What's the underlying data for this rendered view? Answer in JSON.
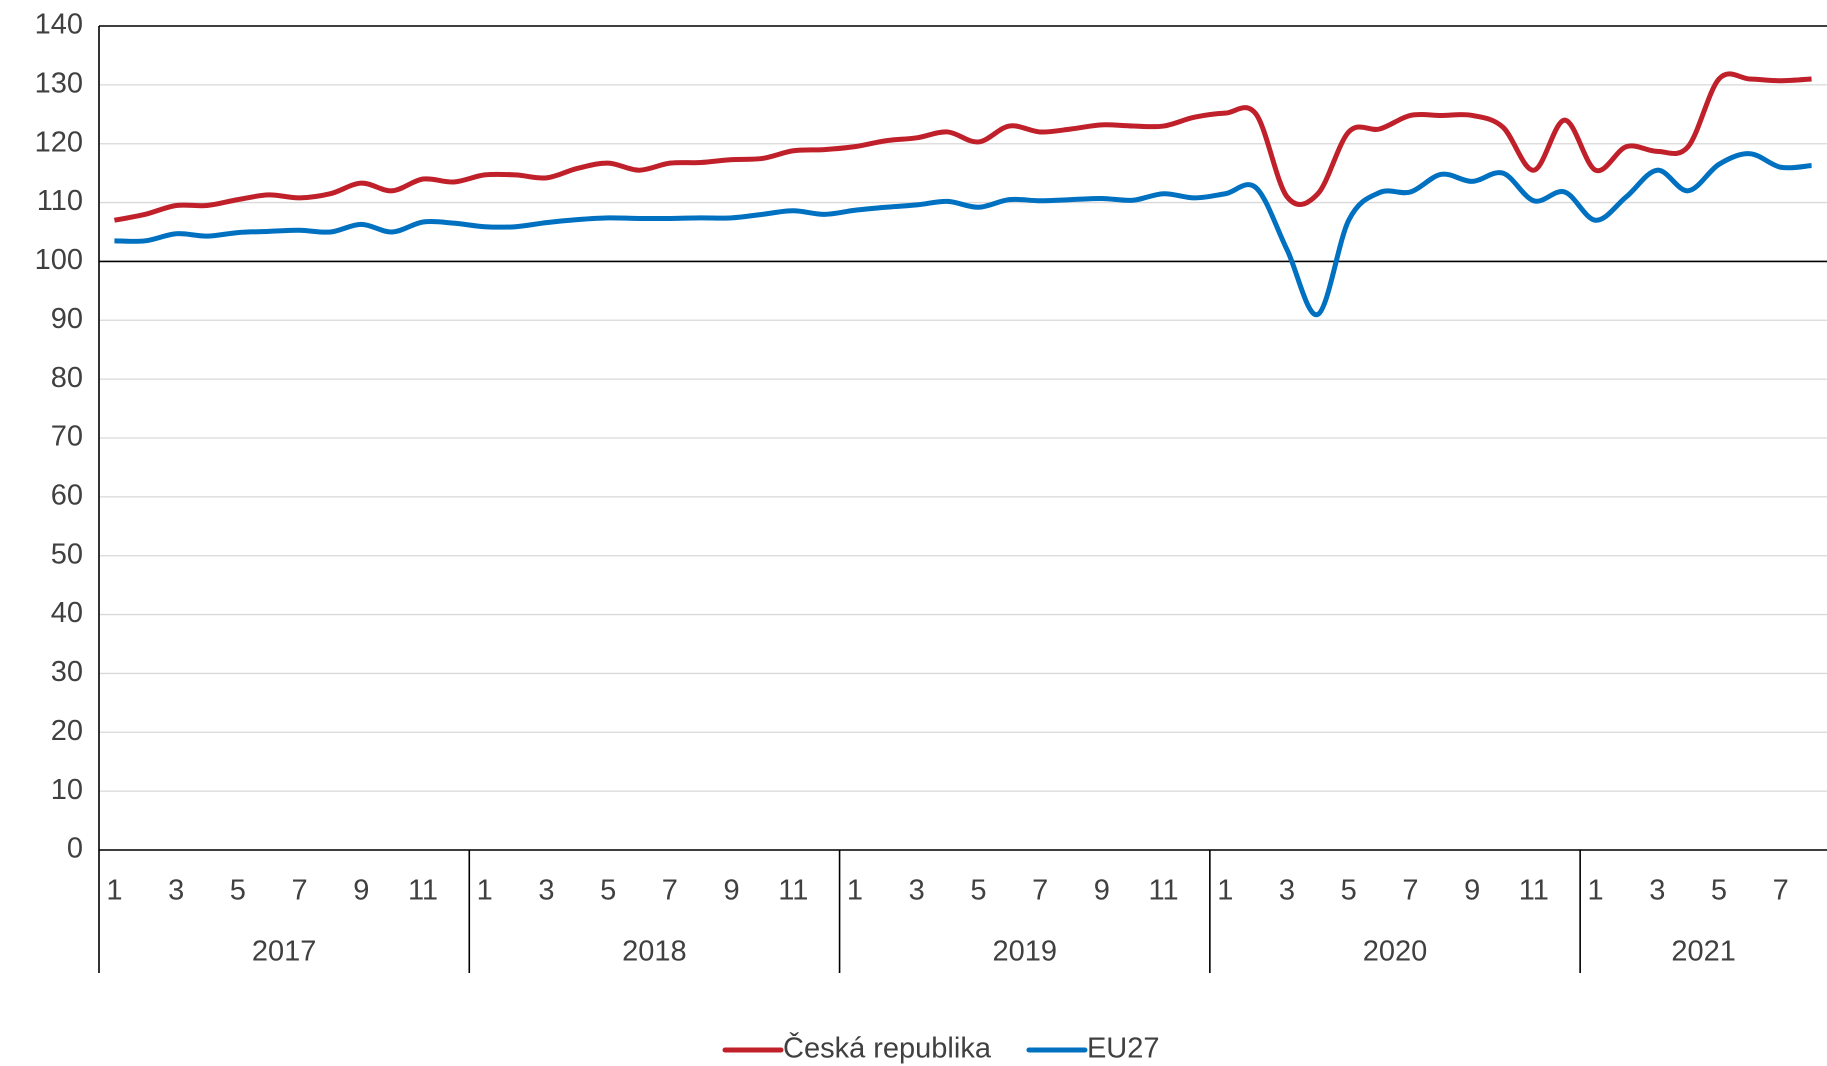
{
  "chart_data": {
    "type": "line",
    "categories": [
      "1",
      null,
      "3",
      null,
      "5",
      null,
      "7",
      null,
      "9",
      null,
      "11",
      null,
      "1",
      null,
      "3",
      null,
      "5",
      null,
      "7",
      null,
      "9",
      null,
      "11",
      null,
      "1",
      null,
      "3",
      null,
      "5",
      null,
      "7",
      null,
      "9",
      null,
      "11",
      null,
      "1",
      null,
      "3",
      null,
      "5",
      null,
      "7",
      null,
      "9",
      null,
      "11",
      null,
      "1",
      null,
      "3",
      null,
      "5",
      null,
      "7",
      null
    ],
    "years": [
      "2017",
      "2018",
      "2019",
      "2020",
      "2021"
    ],
    "series": [
      {
        "name": "Česká republika",
        "color": "#c0202a",
        "values": [
          107,
          108,
          109.5,
          109.5,
          110.5,
          111.3,
          110.8,
          111.5,
          113.3,
          112,
          114,
          113.5,
          114.7,
          114.7,
          114.2,
          115.8,
          116.7,
          115.5,
          116.7,
          116.8,
          117.3,
          117.5,
          118.8,
          119,
          119.5,
          120.5,
          121,
          122,
          120.3,
          123,
          122,
          122.5,
          123.2,
          123,
          123,
          124.5,
          125.2,
          125,
          111,
          111.5,
          122,
          122.5,
          124.8,
          124.8,
          124.8,
          122.8,
          115.5,
          124,
          115.5,
          119.5,
          118.7,
          119.5,
          131,
          131,
          130.7,
          131
        ]
      },
      {
        "name": "EU27",
        "color": "#0070c0",
        "values": [
          103.5,
          103.5,
          104.7,
          104.3,
          104.9,
          105.1,
          105.3,
          105,
          106.3,
          105,
          106.7,
          106.5,
          105.9,
          105.9,
          106.6,
          107.1,
          107.4,
          107.3,
          107.3,
          107.4,
          107.4,
          108,
          108.6,
          108,
          108.7,
          109.2,
          109.6,
          110.2,
          109.2,
          110.5,
          110.3,
          110.5,
          110.7,
          110.4,
          111.5,
          110.8,
          111.5,
          112.5,
          102,
          91,
          107,
          111.7,
          111.8,
          114.8,
          113.6,
          115,
          110.3,
          111.8,
          107,
          111,
          115.5,
          112,
          116.5,
          118.3,
          116,
          116.3
        ]
      }
    ],
    "ylim": [
      0,
      140
    ],
    "yticks": [
      0,
      10,
      20,
      30,
      40,
      50,
      60,
      70,
      80,
      90,
      100,
      110,
      120,
      130,
      140
    ],
    "baseline": 100,
    "grid": true,
    "legend": "bottom"
  }
}
